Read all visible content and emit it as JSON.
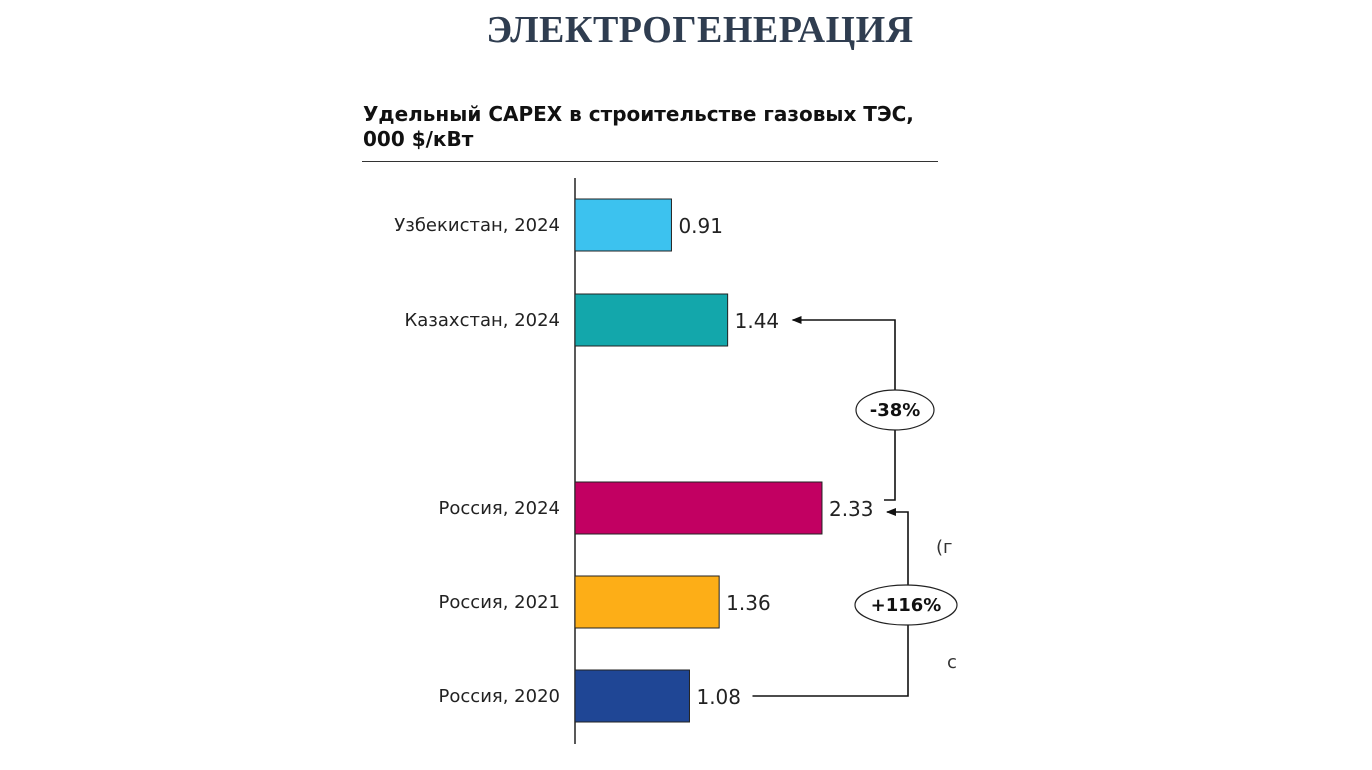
{
  "page": {
    "title": "ЭЛЕКТРОГЕНЕРАЦИЯ"
  },
  "chart_data": {
    "type": "bar",
    "orientation": "horizontal",
    "title": "Удельный CAPEX в строительстве газовых ТЭС, 000 $/кВт",
    "categories": [
      "Узбекистан, 2024",
      "Казахстан, 2024",
      "Россия, 2024",
      "Россия, 2021",
      "Россия, 2020"
    ],
    "values": [
      0.91,
      1.44,
      2.33,
      1.36,
      1.08
    ],
    "value_labels": [
      "0.91",
      "1.44",
      "2.33",
      "1.36",
      "1.08"
    ],
    "colors": [
      "#3cc2ef",
      "#13a7ab",
      "#c20062",
      "#fdae17",
      "#1f4695"
    ],
    "xlabel": "",
    "ylabel": "",
    "grid": false,
    "annotations": [
      {
        "label": "-38%",
        "from": "Россия, 2024",
        "to": "Казахстан, 2024"
      },
      {
        "label": "+116%",
        "from": "Россия, 2020",
        "to": "Россия, 2024"
      }
    ],
    "cropped_fragments": [
      "(г",
      "с"
    ]
  }
}
